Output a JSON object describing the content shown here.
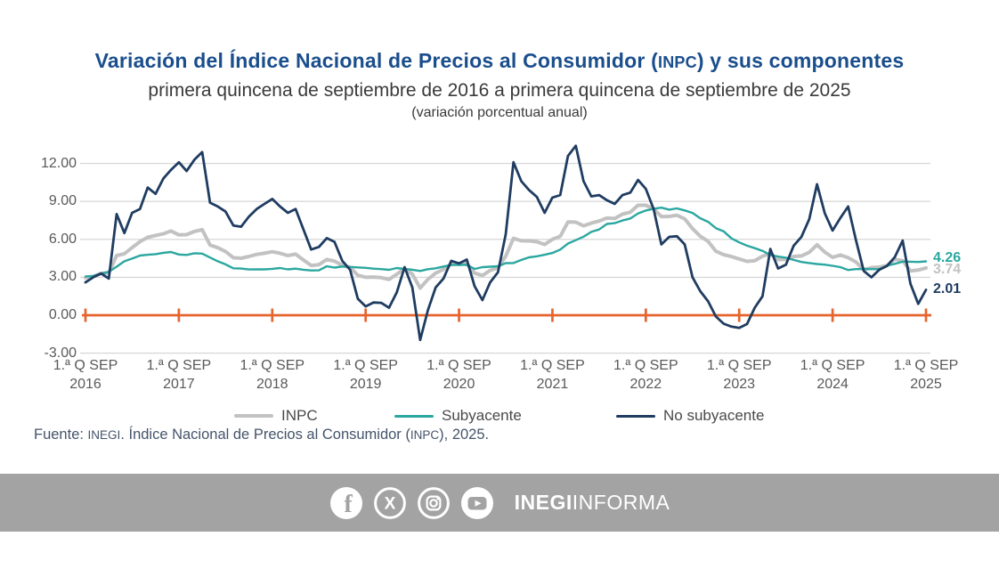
{
  "header": {
    "title_pre": "Variación del Índice Nacional de Precios al Consumidor (",
    "title_acronym": "INPC",
    "title_post": ") y sus componentes",
    "subtitle": "primera quincena de septiembre de 2016 a primera quincena de septiembre de 2025",
    "note": "(variación porcentual anual)"
  },
  "chart_data": {
    "type": "line",
    "title": "Variación del Índice Nacional de Precios al Consumidor (INPC) y sus componentes",
    "subtitle": "primera quincena de septiembre de 2016 a primera quincena de septiembre de 2025",
    "units": "variación porcentual anual",
    "frequency": "monthly-approximation-of-biweekly",
    "x_start": "2016-09",
    "x_end": "2025-09",
    "grid": true,
    "legend_position": "bottom",
    "zero_line_color": "#E7632D",
    "gridline_color": "#D9D9D9",
    "x_axis": {
      "tick_label_line1": "1.ª Q SEP",
      "years": [
        "2016",
        "2017",
        "2018",
        "2019",
        "2020",
        "2021",
        "2022",
        "2023",
        "2024",
        "2025"
      ]
    },
    "y_axis": {
      "range": [
        -3,
        13.5
      ],
      "ticks": [
        {
          "label": "12.00",
          "value": 12
        },
        {
          "label": "9.00",
          "value": 9
        },
        {
          "label": "6.00",
          "value": 6
        },
        {
          "label": "3.00",
          "value": 3
        },
        {
          "label": "0.00",
          "value": 0
        },
        {
          "label": "-3.00",
          "value": -3
        }
      ]
    },
    "series": [
      {
        "name": "INPC",
        "color": "#C2C2C2",
        "end_label": "3.74",
        "values": [
          2.97,
          3.06,
          3.31,
          3.36,
          4.72,
          4.86,
          5.35,
          5.82,
          6.16,
          6.31,
          6.44,
          6.66,
          6.35,
          6.37,
          6.63,
          6.77,
          5.55,
          5.34,
          5.04,
          4.55,
          4.51,
          4.65,
          4.81,
          4.9,
          5.02,
          4.9,
          4.72,
          4.83,
          4.37,
          3.94,
          4.0,
          4.41,
          4.28,
          3.95,
          3.78,
          3.16,
          3.0,
          3.02,
          2.97,
          2.83,
          3.24,
          3.7,
          3.25,
          2.15,
          2.84,
          3.33,
          3.62,
          4.05,
          4.01,
          4.09,
          3.33,
          3.15,
          3.54,
          3.76,
          4.67,
          6.08,
          5.89,
          5.88,
          5.81,
          5.59,
          6.0,
          6.24,
          7.37,
          7.36,
          7.07,
          7.28,
          7.45,
          7.68,
          7.65,
          7.99,
          8.15,
          8.7,
          8.7,
          8.41,
          7.8,
          7.82,
          7.91,
          7.62,
          6.85,
          6.25,
          5.84,
          5.06,
          4.79,
          4.64,
          4.45,
          4.26,
          4.32,
          4.66,
          4.88,
          4.4,
          4.42,
          4.65,
          4.69,
          4.98,
          5.57,
          4.99,
          4.58,
          4.76,
          4.55,
          4.21,
          3.59,
          3.77,
          3.8,
          3.93,
          4.42,
          4.32,
          3.51,
          3.57,
          3.74
        ]
      },
      {
        "name": "Subyacente",
        "color": "#2BA7A0",
        "end_label": "4.26",
        "values": [
          3.07,
          3.1,
          3.29,
          3.44,
          3.84,
          4.27,
          4.48,
          4.72,
          4.78,
          4.83,
          4.94,
          5.0,
          4.8,
          4.77,
          4.9,
          4.87,
          4.56,
          4.27,
          4.02,
          3.71,
          3.69,
          3.62,
          3.63,
          3.63,
          3.67,
          3.73,
          3.63,
          3.68,
          3.6,
          3.54,
          3.55,
          3.87,
          3.77,
          3.85,
          3.82,
          3.78,
          3.75,
          3.68,
          3.65,
          3.59,
          3.73,
          3.66,
          3.6,
          3.5,
          3.64,
          3.71,
          3.85,
          3.97,
          3.99,
          3.98,
          3.66,
          3.8,
          3.84,
          3.87,
          4.12,
          4.13,
          4.37,
          4.58,
          4.66,
          4.78,
          4.92,
          5.19,
          5.67,
          5.94,
          6.21,
          6.59,
          6.78,
          7.22,
          7.28,
          7.49,
          7.65,
          8.05,
          8.28,
          8.42,
          8.51,
          8.35,
          8.45,
          8.29,
          8.09,
          7.67,
          7.39,
          6.89,
          6.64,
          6.08,
          5.76,
          5.5,
          5.3,
          5.09,
          4.76,
          4.64,
          4.55,
          4.37,
          4.21,
          4.13,
          4.05,
          4.0,
          3.91,
          3.8,
          3.58,
          3.65,
          3.66,
          3.65,
          3.64,
          3.93,
          4.06,
          4.24,
          4.23,
          4.21,
          4.26
        ]
      },
      {
        "name": "No subyacente",
        "color": "#1F3C61",
        "end_label": "2.01",
        "values": [
          2.6,
          3.0,
          3.3,
          2.9,
          8.0,
          6.5,
          8.1,
          8.4,
          10.1,
          9.6,
          10.8,
          11.5,
          12.1,
          11.4,
          12.3,
          12.9,
          8.9,
          8.6,
          8.2,
          7.1,
          7.0,
          7.8,
          8.4,
          8.8,
          9.2,
          8.6,
          8.1,
          8.4,
          6.8,
          5.2,
          5.4,
          6.1,
          5.8,
          4.3,
          3.6,
          1.3,
          0.7,
          1.01,
          0.98,
          0.59,
          1.8,
          3.8,
          2.2,
          -1.96,
          0.4,
          2.2,
          2.9,
          4.3,
          4.1,
          4.4,
          2.3,
          1.2,
          2.6,
          3.4,
          6.4,
          12.1,
          10.6,
          9.9,
          9.35,
          8.1,
          9.3,
          9.5,
          12.6,
          13.4,
          10.6,
          9.4,
          9.5,
          9.1,
          8.8,
          9.5,
          9.7,
          10.7,
          10.0,
          8.4,
          5.6,
          6.2,
          6.25,
          5.6,
          3.0,
          1.9,
          1.1,
          -0.1,
          -0.67,
          -0.9,
          -1.0,
          -0.7,
          0.6,
          1.5,
          5.24,
          3.7,
          4.0,
          5.5,
          6.2,
          7.6,
          10.36,
          8.05,
          6.7,
          7.7,
          8.6,
          5.95,
          3.5,
          3.0,
          3.6,
          3.9,
          4.6,
          5.9,
          2.5,
          0.9,
          2.01
        ]
      }
    ]
  },
  "source": {
    "pre": "Fuente: ",
    "inegi": "INEGI",
    "mid": ". Índice Nacional de Precios al Consumidor (",
    "inpc": "INPC",
    "post": "), 2025."
  },
  "footer": {
    "brand_bold": "INEGI",
    "brand_light": "INFORMA",
    "icons": [
      "facebook-icon",
      "x-icon",
      "instagram-icon",
      "youtube-icon"
    ]
  }
}
